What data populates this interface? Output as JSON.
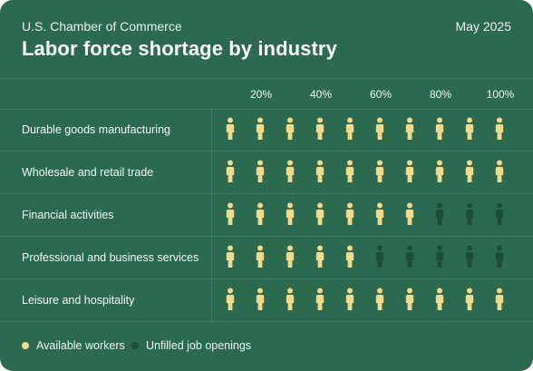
{
  "header": {
    "source": "U.S. Chamber of Commerce",
    "date": "May 2025",
    "title": "Labor force shortage by industry"
  },
  "legend": {
    "available_label": "Available workers",
    "unfilled_label": "Unfilled job openings"
  },
  "colors": {
    "background": "#2b6a4e",
    "available": "#f3d98a",
    "unfilled": "#1c4d37"
  },
  "chart_data": {
    "type": "pictogram",
    "icons_per_row": 10,
    "tick_labels": [
      "20%",
      "40%",
      "60%",
      "80%",
      "100%"
    ],
    "categories": [
      "Durable goods manufacturing",
      "Wholesale and retail trade",
      "Financial activities",
      "Professional and business services",
      "Leisure and hospitality"
    ],
    "series": [
      {
        "name": "Available workers",
        "values": [
          100,
          100,
          70,
          50,
          100
        ]
      },
      {
        "name": "Unfilled job openings",
        "values": [
          0,
          0,
          30,
          50,
          0
        ]
      }
    ]
  }
}
